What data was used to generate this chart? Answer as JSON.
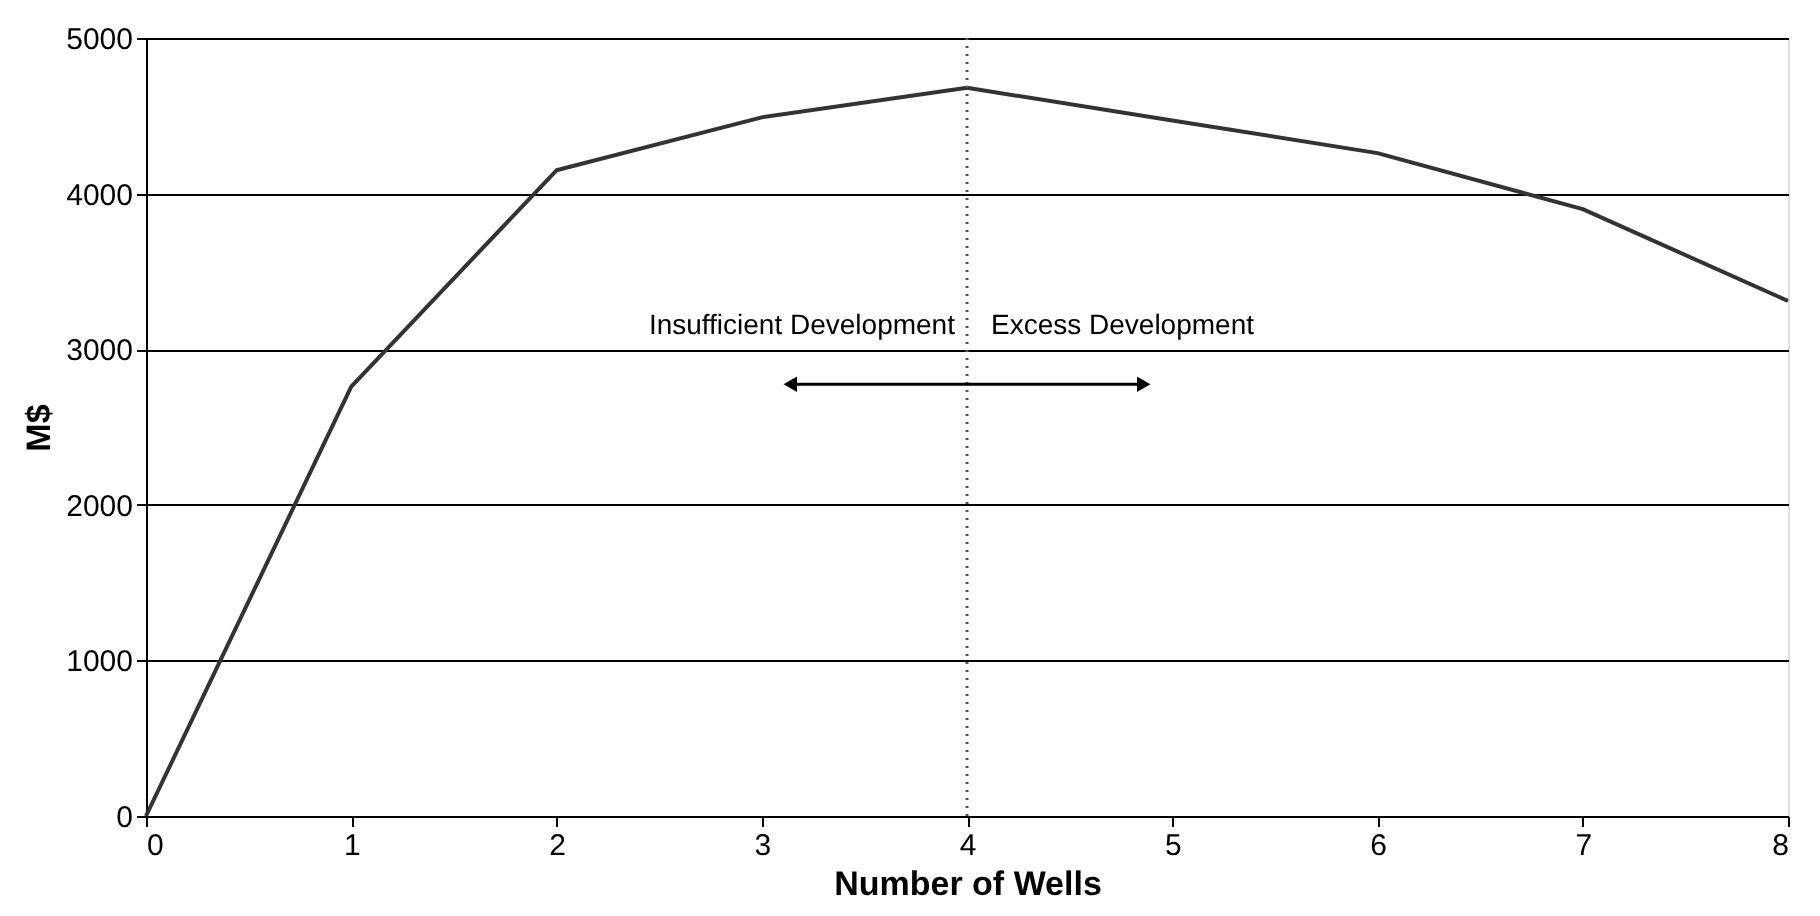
{
  "chart_data": {
    "type": "line",
    "xlabel": "Number of Wells",
    "ylabel": "M$",
    "x": [
      0,
      1,
      2,
      3,
      4,
      5,
      6,
      7,
      8
    ],
    "series": [
      {
        "color": "#333333",
        "values": [
          0,
          2760,
          4150,
          4490,
          4680,
          4470,
          4260,
          3900,
          3310
        ]
      }
    ],
    "xlim": [
      0,
      8
    ],
    "xticks": [
      0,
      1,
      2,
      3,
      4,
      5,
      6,
      7,
      8
    ],
    "ylim": [
      0,
      5000
    ],
    "yticks": [
      0,
      1000,
      2000,
      3000,
      4000,
      5000
    ],
    "grid": "y",
    "marker": "none",
    "line_style": "solid",
    "ref_lines": [
      {
        "axis": "x",
        "value": 4,
        "color": "#555555",
        "line_style": "dotted"
      }
    ],
    "annotations": [
      "Insufficient Development",
      "Excess Development"
    ]
  }
}
